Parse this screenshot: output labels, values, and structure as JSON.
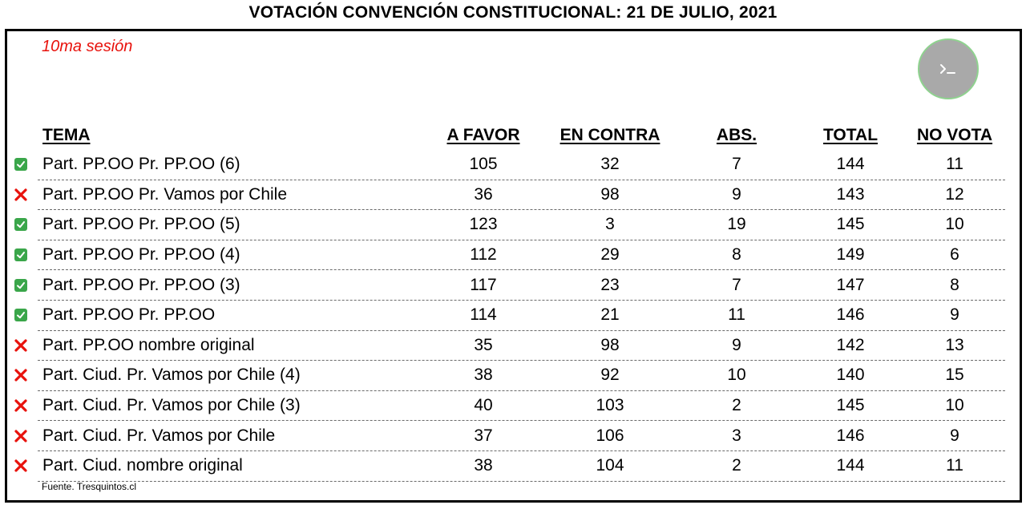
{
  "title": "VOTACIÓN CONVENCIÓN CONSTITUCIONAL: 21 DE JULIO, 2021",
  "session": "10ma sesión",
  "icon": "terminal-icon",
  "colors": {
    "approved": "#3aa64a",
    "rejected": "#e8120c",
    "session": "#e8120c"
  },
  "headers": {
    "tema": "TEMA",
    "favor": "A FAVOR",
    "contra": "EN CONTRA",
    "abs": "ABS.",
    "total": "TOTAL",
    "novota": "NO VOTA"
  },
  "rows": [
    {
      "status": "approved",
      "tema": "Part. PP.OO Pr. PP.OO (6)",
      "favor": "105",
      "contra": "32",
      "abs": "7",
      "total": "144",
      "novota": "11"
    },
    {
      "status": "rejected",
      "tema": "Part. PP.OO Pr. Vamos por Chile",
      "favor": "36",
      "contra": "98",
      "abs": "9",
      "total": "143",
      "novota": "12"
    },
    {
      "status": "approved",
      "tema": "Part. PP.OO Pr. PP.OO (5)",
      "favor": "123",
      "contra": "3",
      "abs": "19",
      "total": "145",
      "novota": "10"
    },
    {
      "status": "approved",
      "tema": "Part. PP.OO Pr. PP.OO (4)",
      "favor": "112",
      "contra": "29",
      "abs": "8",
      "total": "149",
      "novota": "6"
    },
    {
      "status": "approved",
      "tema": "Part. PP.OO Pr. PP.OO (3)",
      "favor": "117",
      "contra": "23",
      "abs": "7",
      "total": "147",
      "novota": "8"
    },
    {
      "status": "approved",
      "tema": "Part. PP.OO Pr. PP.OO",
      "favor": "114",
      "contra": "21",
      "abs": "11",
      "total": "146",
      "novota": "9"
    },
    {
      "status": "rejected",
      "tema": "Part. PP.OO nombre original",
      "favor": "35",
      "contra": "98",
      "abs": "9",
      "total": "142",
      "novota": "13"
    },
    {
      "status": "rejected",
      "tema": "Part. Ciud. Pr. Vamos por Chile (4)",
      "favor": "38",
      "contra": "92",
      "abs": "10",
      "total": "140",
      "novota": "15"
    },
    {
      "status": "rejected",
      "tema": "Part. Ciud. Pr. Vamos por Chile (3)",
      "favor": "40",
      "contra": "103",
      "abs": "2",
      "total": "145",
      "novota": "10"
    },
    {
      "status": "rejected",
      "tema": "Part. Ciud. Pr. Vamos por Chile",
      "favor": "37",
      "contra": "106",
      "abs": "3",
      "total": "146",
      "novota": "9"
    },
    {
      "status": "rejected",
      "tema": "Part. Ciud. nombre original",
      "favor": "38",
      "contra": "104",
      "abs": "2",
      "total": "144",
      "novota": "11"
    }
  ],
  "source": "Fuente. Tresquintos.cl"
}
